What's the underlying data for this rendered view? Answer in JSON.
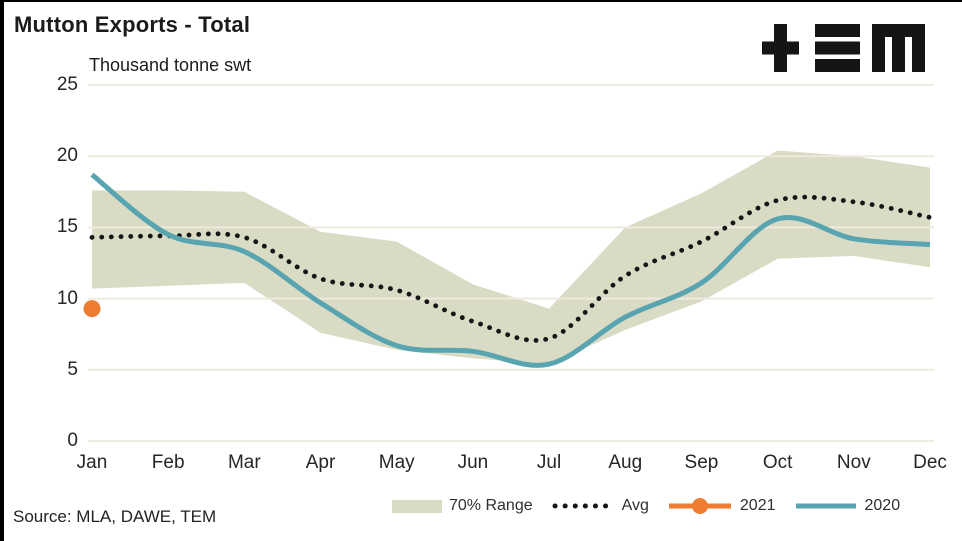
{
  "header": {
    "title": "Mutton Exports - Total",
    "unit_label": "Thousand tonne swt",
    "logo_text": "TEM"
  },
  "footer": {
    "source": "Source: MLA, DAWE, TEM"
  },
  "colors": {
    "band": "#dadbc5",
    "avg": "#161616",
    "series_2021": "#ee7d31",
    "series_2020": "#58a4b0",
    "gridline": "#eeeadf",
    "frame_border": "#000000",
    "logo": "#151515",
    "text": "#1f1f1f"
  },
  "chart_data": {
    "type": "line",
    "title": "Mutton Exports - Total",
    "xlabel": "",
    "ylabel": "Thousand tonne swt",
    "categories": [
      "Jan",
      "Feb",
      "Mar",
      "Apr",
      "May",
      "Jun",
      "Jul",
      "Aug",
      "Sep",
      "Oct",
      "Nov",
      "Dec"
    ],
    "ylim": [
      0,
      25
    ],
    "yticks": [
      0,
      5,
      10,
      15,
      20,
      25
    ],
    "grid": "horizontal",
    "legend_position": "bottom",
    "series": [
      {
        "name": "70% Range",
        "type": "band",
        "color": "#dadbc5",
        "upper": [
          17.6,
          17.6,
          17.5,
          14.7,
          14.0,
          11.0,
          9.3,
          15.0,
          17.4,
          20.4,
          20.0,
          19.2
        ],
        "lower": [
          10.7,
          10.9,
          11.1,
          7.6,
          6.4,
          5.8,
          5.4,
          7.8,
          9.8,
          12.8,
          13.0,
          12.2
        ]
      },
      {
        "name": "Avg",
        "type": "dotted_line",
        "color": "#161616",
        "values": [
          14.3,
          14.4,
          14.3,
          11.4,
          10.6,
          8.4,
          7.2,
          11.6,
          14.0,
          16.9,
          16.8,
          15.7
        ]
      },
      {
        "name": "2021",
        "type": "marker",
        "color": "#ee7d31",
        "values": [
          9.3,
          null,
          null,
          null,
          null,
          null,
          null,
          null,
          null,
          null,
          null,
          null
        ]
      },
      {
        "name": "2020",
        "type": "line",
        "color": "#58a4b0",
        "values": [
          18.7,
          14.5,
          13.3,
          9.7,
          6.7,
          6.3,
          5.4,
          8.7,
          11.1,
          15.6,
          14.2,
          13.8
        ]
      }
    ]
  }
}
